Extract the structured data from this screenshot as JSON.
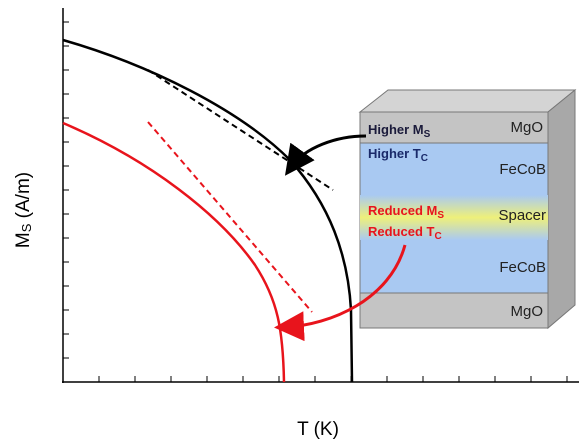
{
  "axes": {
    "y_label": {
      "symbol": "M",
      "subscript": "S",
      "unit": "(A/m)"
    },
    "x_label": "T (K)"
  },
  "annotations": [
    {
      "text": "Higher M",
      "subscript": "S"
    },
    {
      "text": "Higher T",
      "subscript": "C"
    },
    {
      "text": "Reduced M",
      "subscript": "S"
    },
    {
      "text": "Reduced T",
      "subscript": "C"
    }
  ],
  "stack": {
    "layers": [
      "MgO",
      "FeCoB",
      "Spacer",
      "FeCoB",
      "MgO"
    ]
  }
}
